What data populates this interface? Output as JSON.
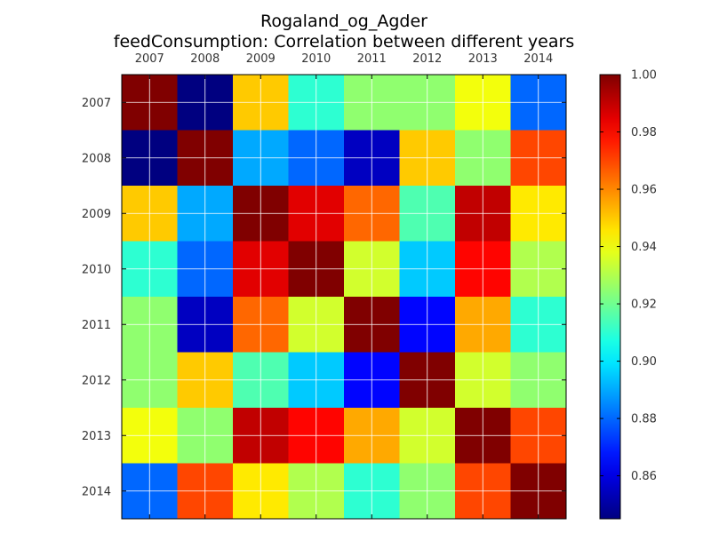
{
  "chart_data": {
    "type": "heatmap",
    "title": "Rogaland_og_Agder",
    "subtitle": "feedConsumption: Correlation between different years",
    "x_categories": [
      "2007",
      "2008",
      "2009",
      "2010",
      "2011",
      "2012",
      "2013",
      "2014"
    ],
    "y_categories": [
      "2007",
      "2008",
      "2009",
      "2010",
      "2011",
      "2012",
      "2013",
      "2014"
    ],
    "x_axis_position": "top",
    "values": [
      [
        1.0,
        0.845,
        0.95,
        0.91,
        0.925,
        0.925,
        0.94,
        0.88
      ],
      [
        0.845,
        1.0,
        0.89,
        0.88,
        0.855,
        0.95,
        0.925,
        0.97
      ],
      [
        0.95,
        0.89,
        1.0,
        0.985,
        0.965,
        0.915,
        0.99,
        0.945
      ],
      [
        0.91,
        0.88,
        0.985,
        1.0,
        0.935,
        0.895,
        0.98,
        0.93
      ],
      [
        0.925,
        0.855,
        0.965,
        0.935,
        1.0,
        0.865,
        0.955,
        0.91
      ],
      [
        0.925,
        0.95,
        0.915,
        0.895,
        0.865,
        1.0,
        0.935,
        0.925
      ],
      [
        0.94,
        0.925,
        0.99,
        0.98,
        0.955,
        0.935,
        1.0,
        0.97
      ],
      [
        0.88,
        0.97,
        0.945,
        0.93,
        0.91,
        0.925,
        0.97,
        1.0
      ]
    ],
    "colormap": "jet",
    "vmin": 0.845,
    "vmax": 1.0,
    "colorbar": {
      "ticks": [
        "0.86",
        "0.88",
        "0.90",
        "0.92",
        "0.94",
        "0.96",
        "0.98",
        "1.00"
      ],
      "tick_values": [
        0.86,
        0.88,
        0.9,
        0.92,
        0.94,
        0.96,
        0.98,
        1.0
      ],
      "placement": "right"
    },
    "grid": true
  }
}
